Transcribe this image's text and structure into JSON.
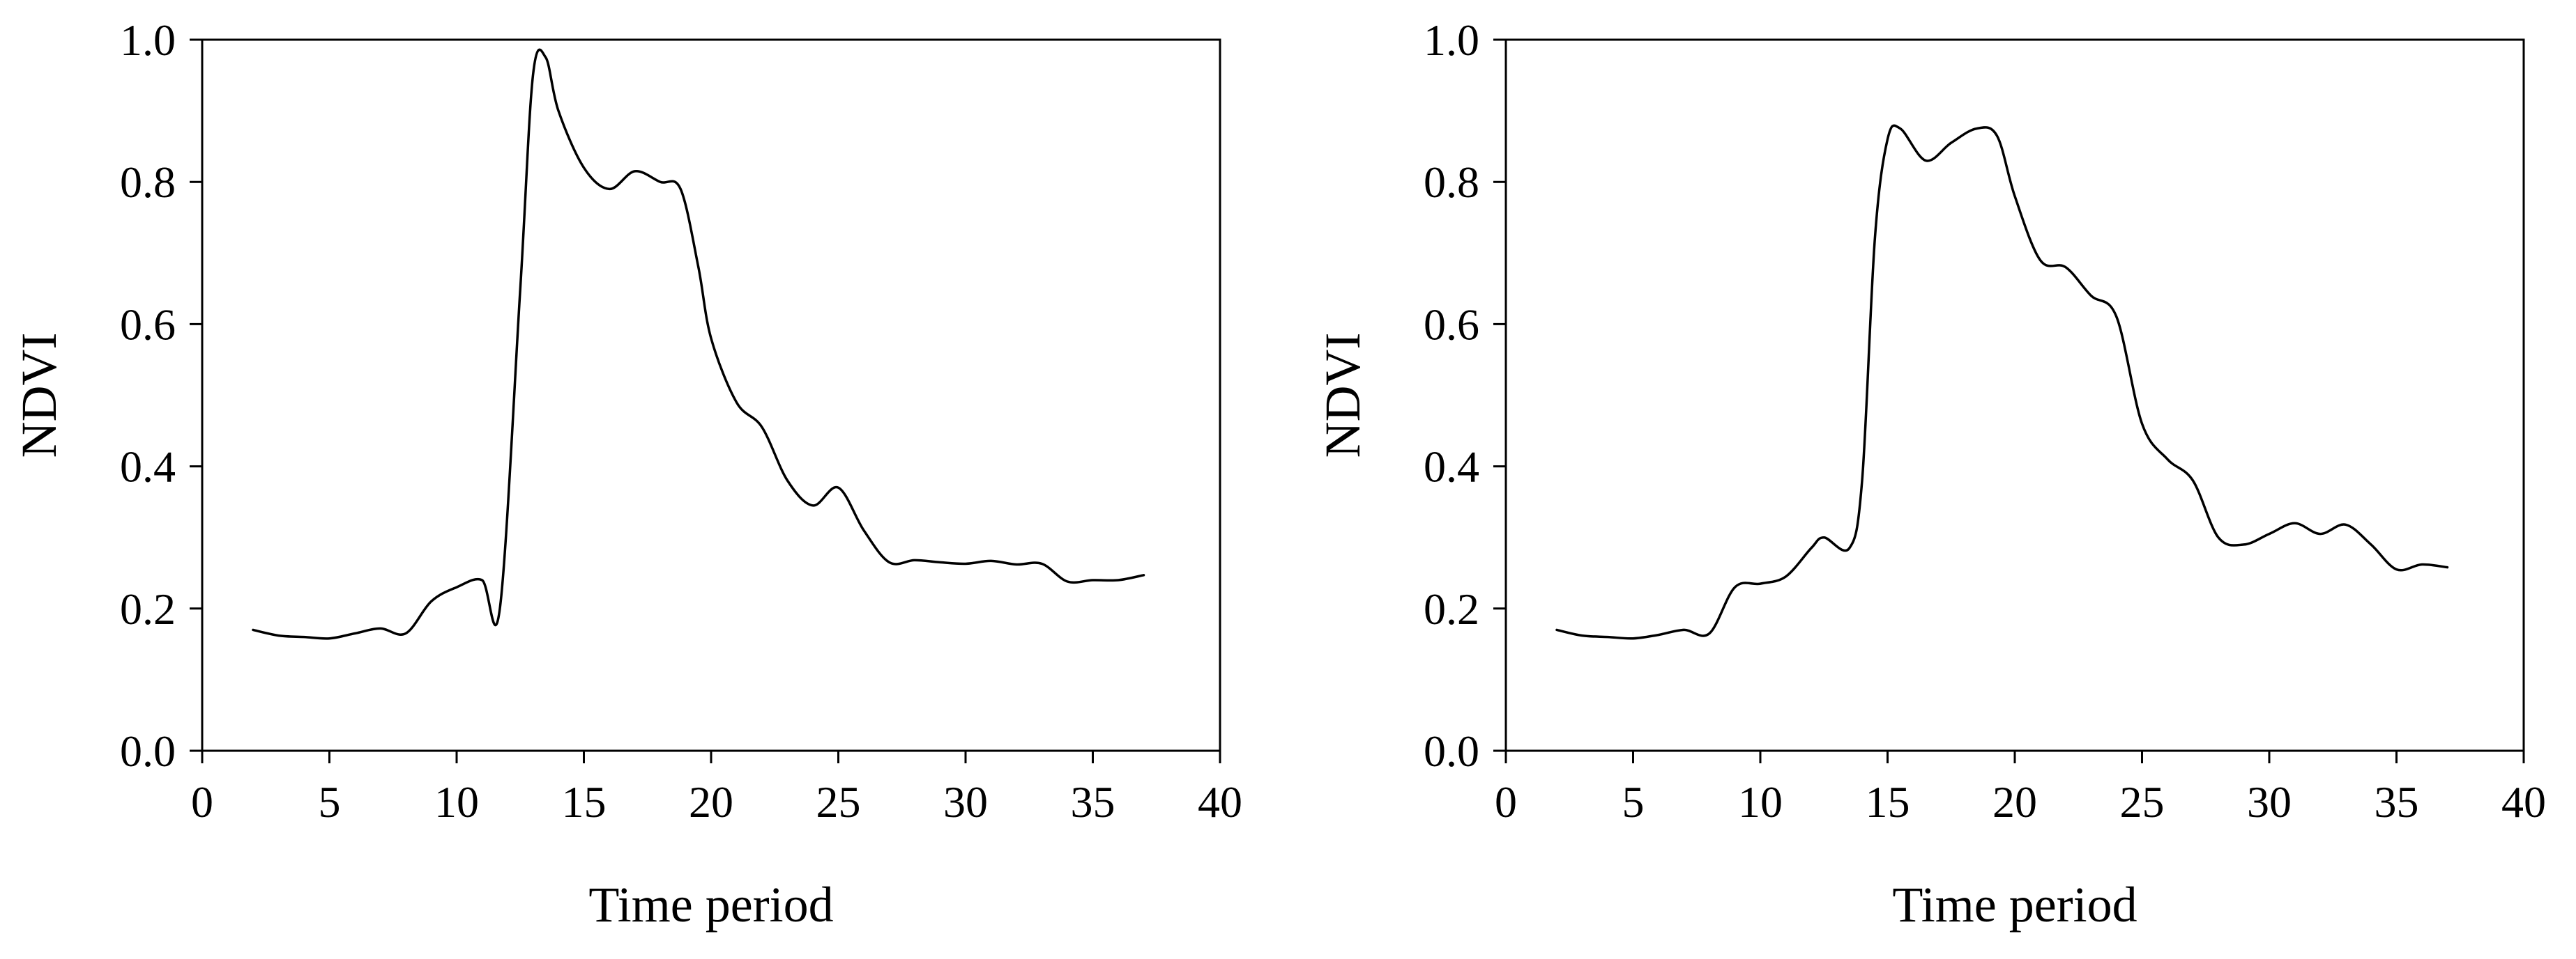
{
  "chart_data": [
    {
      "type": "line",
      "title": "",
      "xlabel": "Time period",
      "ylabel": "NDVI",
      "xlim": [
        0,
        40
      ],
      "ylim": [
        0.0,
        1.0
      ],
      "x_ticks": [
        0,
        5,
        10,
        15,
        20,
        25,
        30,
        35,
        40
      ],
      "y_ticks": [
        0.0,
        0.2,
        0.4,
        0.6,
        0.8,
        1.0
      ],
      "x_tick_labels": [
        "0",
        "5",
        "10",
        "15",
        "20",
        "25",
        "30",
        "35",
        "40"
      ],
      "y_tick_labels": [
        "0.0",
        "0.2",
        "0.4",
        "0.6",
        "0.8",
        "1.0"
      ],
      "grid": false,
      "series": [
        {
          "color": "#000000",
          "x": [
            2,
            3,
            4,
            5,
            6,
            7,
            8,
            9,
            10,
            11,
            11.7,
            12.5,
            13,
            13.5,
            14,
            15,
            16,
            17,
            18,
            18.8,
            19.5,
            20,
            21,
            22,
            23,
            24,
            25,
            26,
            27,
            28,
            29,
            30,
            31,
            32,
            33,
            34,
            35,
            36,
            37
          ],
          "y": [
            0.17,
            0.162,
            0.16,
            0.158,
            0.165,
            0.172,
            0.165,
            0.21,
            0.23,
            0.24,
            0.2,
            0.65,
            0.95,
            0.975,
            0.9,
            0.82,
            0.79,
            0.815,
            0.8,
            0.79,
            0.68,
            0.58,
            0.49,
            0.455,
            0.38,
            0.345,
            0.37,
            0.31,
            0.265,
            0.268,
            0.265,
            0.263,
            0.267,
            0.262,
            0.263,
            0.238,
            0.24,
            0.24,
            0.247
          ]
        }
      ]
    },
    {
      "type": "line",
      "title": "",
      "xlabel": "Time period",
      "ylabel": "NDVI",
      "xlim": [
        0,
        40
      ],
      "ylim": [
        0.0,
        1.0
      ],
      "x_ticks": [
        0,
        5,
        10,
        15,
        20,
        25,
        30,
        35,
        40
      ],
      "y_ticks": [
        0.0,
        0.2,
        0.4,
        0.6,
        0.8,
        1.0
      ],
      "x_tick_labels": [
        "0",
        "5",
        "10",
        "15",
        "20",
        "25",
        "30",
        "35",
        "40"
      ],
      "y_tick_labels": [
        "0.0",
        "0.2",
        "0.4",
        "0.6",
        "0.8",
        "1.0"
      ],
      "grid": false,
      "series": [
        {
          "color": "#000000",
          "x": [
            2,
            3,
            4,
            5,
            6,
            7,
            8,
            9,
            10,
            11,
            12,
            12.5,
            13.5,
            14,
            14.5,
            15,
            15.5,
            16.5,
            17.5,
            18.5,
            19.3,
            20,
            21,
            22,
            23,
            24,
            25,
            26,
            27,
            28,
            29,
            30,
            31,
            32,
            33,
            34,
            35,
            36,
            37
          ],
          "y": [
            0.17,
            0.162,
            0.16,
            0.158,
            0.163,
            0.17,
            0.165,
            0.23,
            0.235,
            0.245,
            0.285,
            0.3,
            0.285,
            0.38,
            0.72,
            0.86,
            0.875,
            0.83,
            0.855,
            0.875,
            0.865,
            0.78,
            0.69,
            0.68,
            0.64,
            0.61,
            0.46,
            0.41,
            0.38,
            0.3,
            0.29,
            0.305,
            0.32,
            0.305,
            0.318,
            0.29,
            0.255,
            0.262,
            0.258
          ]
        }
      ]
    }
  ]
}
